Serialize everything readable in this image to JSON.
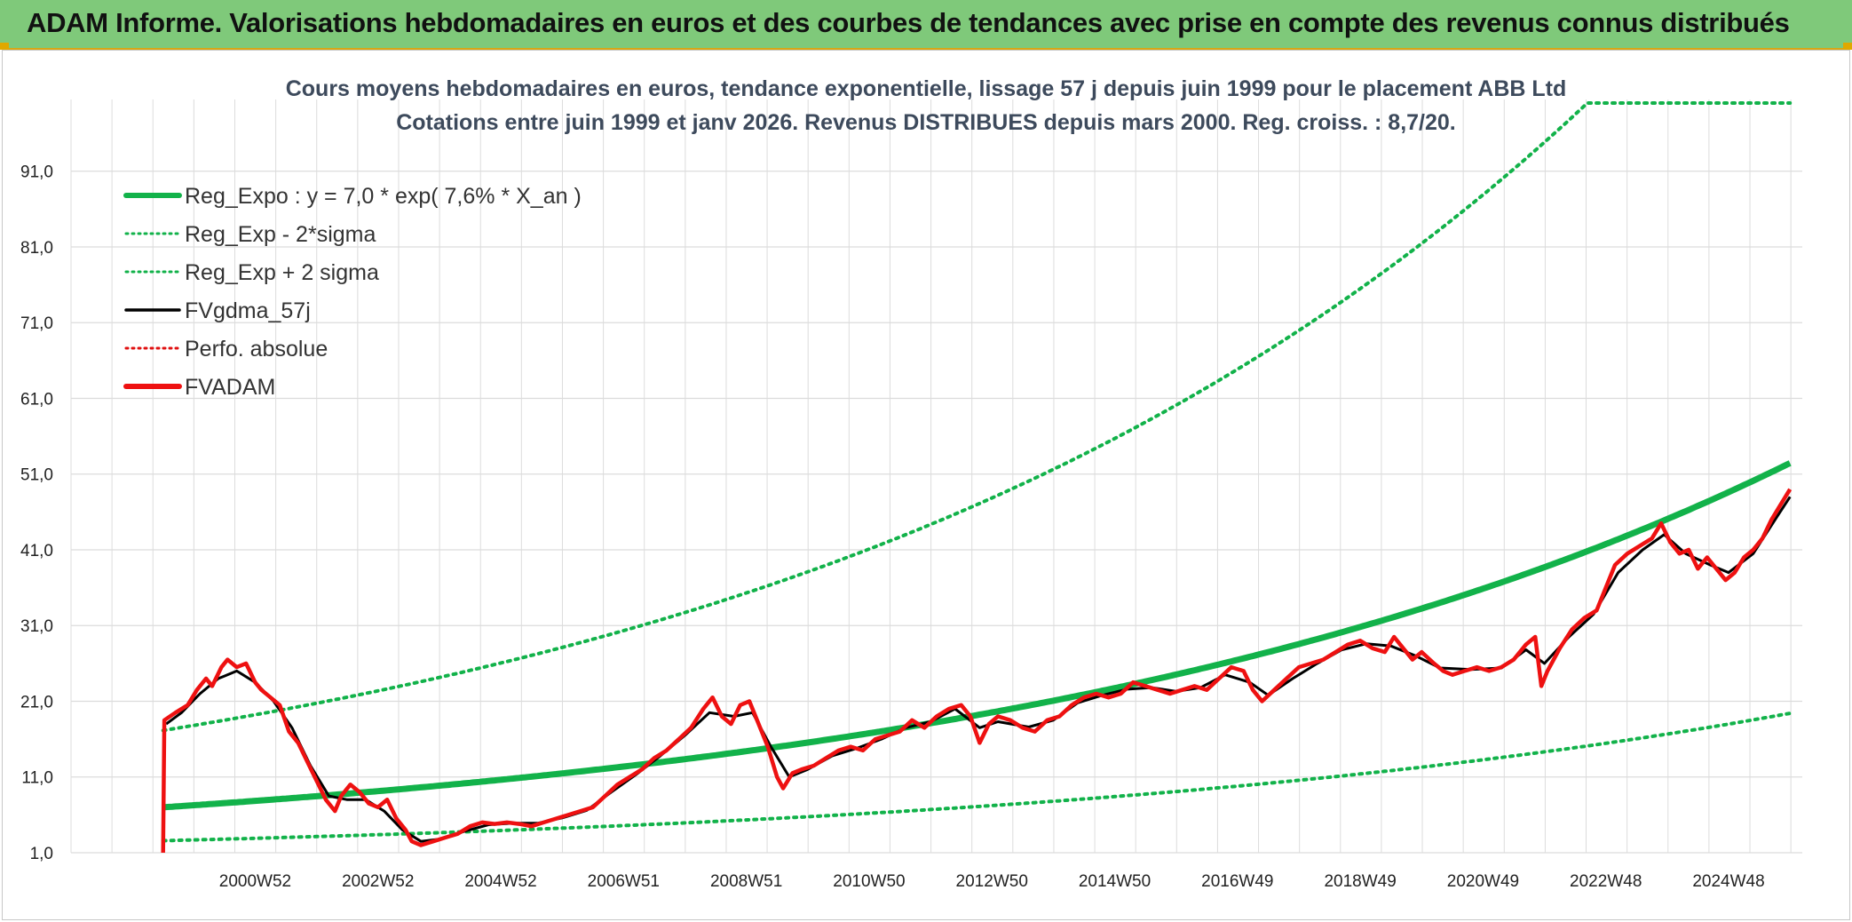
{
  "banner": {
    "title": "ADAM Informe. Valorisations hebdomadaires en euros et des courbes de tendances avec prise en compte des revenus connus distribués"
  },
  "colors": {
    "banner_bg": "#7fc97a",
    "reg_expo": "#12b24a",
    "sigma": "#12b24a",
    "fvgdma": "#000000",
    "perfo": "#e01010",
    "fvadam": "#ee1111",
    "grid": "#dcdcdc"
  },
  "chart_data": {
    "type": "line",
    "title_line1": "Cours moyens hebdomadaires en euros, tendance exponentielle, lissage 57 j depuis juin 1999 pour le placement ABB Ltd",
    "title_line2": "Cotations entre juin 1999 et janv 2026. Revenus DISTRIBUES depuis mars 2000. Reg. croiss. : 8,7/20.",
    "y_ticks": [
      "1,0",
      "11,0",
      "21,0",
      "31,0",
      "41,0",
      "51,0",
      "61,0",
      "71,0",
      "81,0",
      "91,0"
    ],
    "x_tick_labels": [
      "2000W52",
      "2002W52",
      "2004W52",
      "2006W51",
      "2008W51",
      "2010W50",
      "2012W50",
      "2014W50",
      "2016W49",
      "2018W49",
      "2020W49",
      "2022W48",
      "2024W48"
    ],
    "xlim": [
      1998.0,
      2026.2
    ],
    "ylim": [
      1,
      100
    ],
    "grid": true,
    "legend_position": "top-left",
    "legend": [
      {
        "label": "Reg_Expo : y = 7,0 * exp( 7,6% *  X_an )",
        "style": "thick-solid",
        "color": "#12b24a"
      },
      {
        "label": "Reg_Exp - 2*sigma",
        "style": "dotted",
        "color": "#12b24a"
      },
      {
        "label": "Reg_Exp + 2 sigma",
        "style": "dotted",
        "color": "#12b24a"
      },
      {
        "label": "FVgdma_57j",
        "style": "solid",
        "color": "#000000"
      },
      {
        "label": "Perfo. absolue",
        "style": "dotted",
        "color": "#e01010"
      },
      {
        "label": "FVADAM",
        "style": "thick-solid",
        "color": "#ee1111"
      }
    ],
    "series_fvadam": [
      [
        1999.5,
        1.0
      ],
      [
        1999.52,
        18.5
      ],
      [
        1999.7,
        19.5
      ],
      [
        1999.9,
        20.5
      ],
      [
        2000.05,
        22.5
      ],
      [
        2000.2,
        24.0
      ],
      [
        2000.3,
        23.0
      ],
      [
        2000.45,
        25.5
      ],
      [
        2000.55,
        26.5
      ],
      [
        2000.7,
        25.5
      ],
      [
        2000.85,
        26.0
      ],
      [
        2001.0,
        23.5
      ],
      [
        2001.1,
        22.5
      ],
      [
        2001.25,
        21.5
      ],
      [
        2001.4,
        20.5
      ],
      [
        2001.55,
        17.0
      ],
      [
        2001.7,
        15.5
      ],
      [
        2001.85,
        13.0
      ],
      [
        2002.0,
        10.5
      ],
      [
        2002.15,
        8.0
      ],
      [
        2002.3,
        6.5
      ],
      [
        2002.4,
        8.5
      ],
      [
        2002.55,
        10.0
      ],
      [
        2002.7,
        9.0
      ],
      [
        2002.85,
        7.5
      ],
      [
        2003.0,
        7.0
      ],
      [
        2003.15,
        8.0
      ],
      [
        2003.3,
        5.5
      ],
      [
        2003.45,
        4.0
      ],
      [
        2003.55,
        2.5
      ],
      [
        2003.7,
        2.0
      ],
      [
        2003.9,
        2.5
      ],
      [
        2004.1,
        3.0
      ],
      [
        2004.3,
        3.5
      ],
      [
        2004.5,
        4.5
      ],
      [
        2004.7,
        5.0
      ],
      [
        2004.9,
        4.8
      ],
      [
        2005.1,
        5.0
      ],
      [
        2005.3,
        4.8
      ],
      [
        2005.5,
        4.5
      ],
      [
        2005.7,
        5.0
      ],
      [
        2005.9,
        5.5
      ],
      [
        2006.1,
        6.0
      ],
      [
        2006.3,
        6.5
      ],
      [
        2006.5,
        7.0
      ],
      [
        2006.7,
        8.5
      ],
      [
        2006.9,
        10.0
      ],
      [
        2007.1,
        11.0
      ],
      [
        2007.3,
        12.0
      ],
      [
        2007.5,
        13.5
      ],
      [
        2007.7,
        14.5
      ],
      [
        2007.9,
        16.0
      ],
      [
        2008.1,
        17.5
      ],
      [
        2008.3,
        20.0
      ],
      [
        2008.45,
        21.5
      ],
      [
        2008.6,
        19.0
      ],
      [
        2008.75,
        18.0
      ],
      [
        2008.9,
        20.5
      ],
      [
        2009.05,
        21.0
      ],
      [
        2009.2,
        18.0
      ],
      [
        2009.35,
        15.0
      ],
      [
        2009.5,
        11.0
      ],
      [
        2009.6,
        9.5
      ],
      [
        2009.75,
        11.5
      ],
      [
        2009.9,
        12.0
      ],
      [
        2010.1,
        12.5
      ],
      [
        2010.3,
        13.5
      ],
      [
        2010.5,
        14.5
      ],
      [
        2010.7,
        15.0
      ],
      [
        2010.9,
        14.5
      ],
      [
        2011.1,
        16.0
      ],
      [
        2011.3,
        16.5
      ],
      [
        2011.5,
        17.0
      ],
      [
        2011.7,
        18.5
      ],
      [
        2011.9,
        17.5
      ],
      [
        2012.1,
        19.0
      ],
      [
        2012.3,
        20.0
      ],
      [
        2012.5,
        20.5
      ],
      [
        2012.65,
        19.0
      ],
      [
        2012.8,
        15.5
      ],
      [
        2012.95,
        18.0
      ],
      [
        2013.1,
        19.0
      ],
      [
        2013.3,
        18.5
      ],
      [
        2013.5,
        17.5
      ],
      [
        2013.7,
        17.0
      ],
      [
        2013.9,
        18.5
      ],
      [
        2014.1,
        19.0
      ],
      [
        2014.3,
        20.5
      ],
      [
        2014.5,
        21.5
      ],
      [
        2014.7,
        22.0
      ],
      [
        2014.9,
        21.5
      ],
      [
        2015.1,
        22.0
      ],
      [
        2015.3,
        23.5
      ],
      [
        2015.5,
        23.0
      ],
      [
        2015.7,
        22.5
      ],
      [
        2015.9,
        22.0
      ],
      [
        2016.1,
        22.5
      ],
      [
        2016.3,
        23.0
      ],
      [
        2016.5,
        22.5
      ],
      [
        2016.7,
        24.0
      ],
      [
        2016.9,
        25.5
      ],
      [
        2017.1,
        25.0
      ],
      [
        2017.25,
        22.5
      ],
      [
        2017.4,
        21.0
      ],
      [
        2017.6,
        22.5
      ],
      [
        2017.8,
        24.0
      ],
      [
        2018.0,
        25.5
      ],
      [
        2018.2,
        26.0
      ],
      [
        2018.4,
        26.5
      ],
      [
        2018.6,
        27.5
      ],
      [
        2018.8,
        28.5
      ],
      [
        2019.0,
        29.0
      ],
      [
        2019.2,
        28.0
      ],
      [
        2019.4,
        27.5
      ],
      [
        2019.55,
        29.5
      ],
      [
        2019.7,
        28.0
      ],
      [
        2019.85,
        26.5
      ],
      [
        2020.0,
        27.5
      ],
      [
        2020.2,
        26.0
      ],
      [
        2020.35,
        25.0
      ],
      [
        2020.5,
        24.5
      ],
      [
        2020.7,
        25.0
      ],
      [
        2020.9,
        25.5
      ],
      [
        2021.1,
        25.0
      ],
      [
        2021.3,
        25.5
      ],
      [
        2021.5,
        26.5
      ],
      [
        2021.7,
        28.5
      ],
      [
        2021.85,
        29.5
      ],
      [
        2021.95,
        23.0
      ],
      [
        2022.05,
        25.0
      ],
      [
        2022.25,
        28.0
      ],
      [
        2022.45,
        30.5
      ],
      [
        2022.65,
        32.0
      ],
      [
        2022.85,
        33.0
      ],
      [
        2023.0,
        36.0
      ],
      [
        2023.15,
        39.0
      ],
      [
        2023.35,
        40.5
      ],
      [
        2023.55,
        41.5
      ],
      [
        2023.75,
        42.5
      ],
      [
        2023.9,
        44.5
      ],
      [
        2024.05,
        42.0
      ],
      [
        2024.2,
        40.5
      ],
      [
        2024.35,
        41.0
      ],
      [
        2024.5,
        38.5
      ],
      [
        2024.65,
        40.0
      ],
      [
        2024.8,
        38.5
      ],
      [
        2024.95,
        37.0
      ],
      [
        2025.1,
        38.0
      ],
      [
        2025.25,
        40.0
      ],
      [
        2025.4,
        41.0
      ],
      [
        2025.55,
        42.5
      ],
      [
        2025.7,
        45.0
      ],
      [
        2025.85,
        47.0
      ],
      [
        2026.0,
        49.0
      ]
    ],
    "series_fvgdma": [
      [
        1999.55,
        18.0
      ],
      [
        1999.8,
        19.5
      ],
      [
        2000.1,
        22.0
      ],
      [
        2000.4,
        24.0
      ],
      [
        2000.7,
        25.0
      ],
      [
        2001.0,
        23.5
      ],
      [
        2001.3,
        21.0
      ],
      [
        2001.6,
        17.5
      ],
      [
        2001.9,
        12.5
      ],
      [
        2002.2,
        8.5
      ],
      [
        2002.5,
        8.0
      ],
      [
        2002.8,
        8.0
      ],
      [
        2003.1,
        6.5
      ],
      [
        2003.4,
        4.0
      ],
      [
        2003.7,
        2.5
      ],
      [
        2004.0,
        2.8
      ],
      [
        2004.4,
        3.8
      ],
      [
        2004.8,
        4.7
      ],
      [
        2005.2,
        4.9
      ],
      [
        2005.6,
        4.9
      ],
      [
        2006.0,
        5.6
      ],
      [
        2006.4,
        6.6
      ],
      [
        2006.8,
        9.0
      ],
      [
        2007.2,
        11.3
      ],
      [
        2007.6,
        13.8
      ],
      [
        2008.0,
        16.5
      ],
      [
        2008.4,
        19.5
      ],
      [
        2008.8,
        19.0
      ],
      [
        2009.1,
        19.5
      ],
      [
        2009.4,
        15.0
      ],
      [
        2009.7,
        11.0
      ],
      [
        2010.0,
        12.0
      ],
      [
        2010.4,
        13.8
      ],
      [
        2010.8,
        14.8
      ],
      [
        2011.2,
        16.0
      ],
      [
        2011.6,
        17.5
      ],
      [
        2012.0,
        18.3
      ],
      [
        2012.4,
        20.0
      ],
      [
        2012.8,
        17.5
      ],
      [
        2013.1,
        18.3
      ],
      [
        2013.6,
        17.6
      ],
      [
        2014.0,
        18.5
      ],
      [
        2014.4,
        20.8
      ],
      [
        2014.8,
        21.8
      ],
      [
        2015.2,
        22.6
      ],
      [
        2015.6,
        22.8
      ],
      [
        2016.0,
        22.3
      ],
      [
        2016.4,
        22.8
      ],
      [
        2016.8,
        24.5
      ],
      [
        2017.2,
        23.5
      ],
      [
        2017.5,
        21.8
      ],
      [
        2017.9,
        24.0
      ],
      [
        2018.3,
        26.0
      ],
      [
        2018.7,
        27.8
      ],
      [
        2019.1,
        28.6
      ],
      [
        2019.5,
        28.3
      ],
      [
        2019.9,
        27.0
      ],
      [
        2020.3,
        25.4
      ],
      [
        2020.8,
        25.2
      ],
      [
        2021.3,
        25.4
      ],
      [
        2021.7,
        27.8
      ],
      [
        2022.0,
        26.0
      ],
      [
        2022.4,
        29.5
      ],
      [
        2022.8,
        32.5
      ],
      [
        2023.2,
        38.0
      ],
      [
        2023.6,
        41.0
      ],
      [
        2023.95,
        43.0
      ],
      [
        2024.3,
        40.5
      ],
      [
        2024.7,
        39.0
      ],
      [
        2025.0,
        38.0
      ],
      [
        2025.4,
        40.5
      ],
      [
        2025.8,
        45.5
      ],
      [
        2026.0,
        48.0
      ]
    ]
  }
}
